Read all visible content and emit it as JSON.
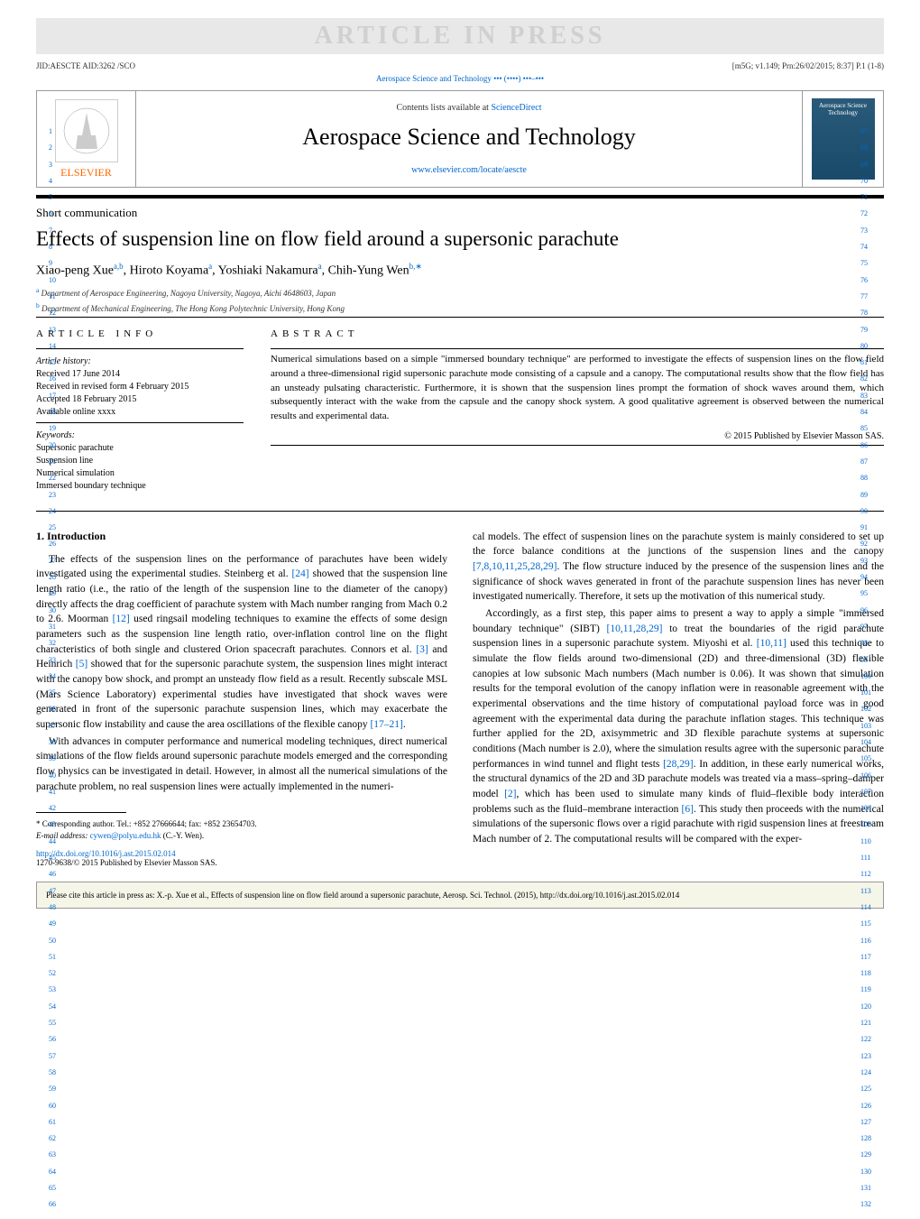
{
  "watermark": "ARTICLE IN PRESS",
  "topMeta": {
    "left": "JID:AESCTE   AID:3262 /SCO",
    "right": "[m5G; v1.149; Prn:26/02/2015; 8:37] P.1 (1-8)"
  },
  "journalLinkTop": "Aerospace Science and Technology ••• (••••) •••–•••",
  "header": {
    "contentsText": "Contents lists available at ",
    "contentsLink": "ScienceDirect",
    "journalTitle": "Aerospace Science and Technology",
    "journalUrl": "www.elsevier.com/locate/aescte",
    "elsevierText": "ELSEVIER",
    "coverLabel": "Aerospace Science Technology"
  },
  "articleType": "Short communication",
  "paperTitle": "Effects of suspension line on flow field around a supersonic parachute",
  "authors": "Xiao-peng Xue",
  "authorsSup1": "a,b",
  "authors2": ", Hiroto Koyama",
  "authorsSup2": "a",
  "authors3": ", Yoshiaki Nakamura",
  "authorsSup3": "a",
  "authors4": ", Chih-Yung Wen",
  "authorsSup4": "b,∗",
  "affiliations": {
    "a": "Department of Aerospace Engineering, Nagoya University, Nagoya, Aichi 4648603, Japan",
    "b": "Department of Mechanical Engineering, The Hong Kong Polytechnic University, Hong Kong"
  },
  "articleInfo": {
    "heading": "ARTICLE INFO",
    "historyLabel": "Article history:",
    "received": "Received 17 June 2014",
    "revised": "Received in revised form 4 February 2015",
    "accepted": "Accepted 18 February 2015",
    "online": "Available online xxxx",
    "keywordsLabel": "Keywords:",
    "kw1": "Supersonic parachute",
    "kw2": "Suspension line",
    "kw3": "Numerical simulation",
    "kw4": "Immersed boundary technique"
  },
  "abstract": {
    "heading": "ABSTRACT",
    "text": "Numerical simulations based on a simple \"immersed boundary technique\" are performed to investigate the effects of suspension lines on the flow field around a three-dimensional rigid supersonic parachute mode consisting of a capsule and a canopy. The computational results show that the flow field has an unsteady pulsating characteristic. Furthermore, it is shown that the suspension lines prompt the formation of shock waves around them, which subsequently interact with the wake from the capsule and the canopy shock system. A good qualitative agreement is observed between the numerical results and experimental data.",
    "copyright": "© 2015 Published by Elsevier Masson SAS."
  },
  "section1": {
    "heading": "1. Introduction",
    "p1": "The effects of the suspension lines on the performance of parachutes have been widely investigated using the experimental studies. Steinberg et al. [24] showed that the suspension line length ratio (i.e., the ratio of the length of the suspension line to the diameter of the canopy) directly affects the drag coefficient of parachute system with Mach number ranging from Mach 0.2 to 2.6. Moorman [12] used ringsail modeling techniques to examine the effects of some design parameters such as the suspension line length ratio, over-inflation control line on the flight characteristics of both single and clustered Orion spacecraft parachutes. Connors et al. [3] and Heinrich [5] showed that for the supersonic parachute system, the suspension lines might interact with the canopy bow shock, and prompt an unsteady flow field as a result. Recently subscale MSL (Mars Science Laboratory) experimental studies have investigated that shock waves were generated in front of the supersonic parachute suspension lines, which may exacerbate the supersonic flow instability and cause the area oscillations of the flexible canopy [17–21].",
    "p2": "With advances in computer performance and numerical modeling techniques, direct numerical simulations of the flow fields around supersonic parachute models emerged and the corresponding flow physics can be investigated in detail. However, in almost all the numerical simulations of the parachute problem, no real suspension lines were actually implemented in the numeri-",
    "p3": "cal models. The effect of suspension lines on the parachute system is mainly considered to set up the force balance conditions at the junctions of the suspension lines and the canopy [7,8,10,11,25,28,29]. The flow structure induced by the presence of the suspension lines and the significance of shock waves generated in front of the parachute suspension lines has never been investigated numerically. Therefore, it sets up the motivation of this numerical study.",
    "p4": "Accordingly, as a first step, this paper aims to present a way to apply a simple \"immersed boundary technique\" (SIBT) [10,11,28,29] to treat the boundaries of the rigid parachute suspension lines in a supersonic parachute system. Miyoshi et al. [10,11] used this technique to simulate the flow fields around two-dimensional (2D) and three-dimensional (3D) flexible canopies at low subsonic Mach numbers (Mach number is 0.06). It was shown that simulation results for the temporal evolution of the canopy inflation were in reasonable agreement with the experimental observations and the time history of computational payload force was in good agreement with the experimental data during the parachute inflation stages. This technique was further applied for the 2D, axisymmetric and 3D flexible parachute systems at supersonic conditions (Mach number is 2.0), where the simulation results agree with the supersonic parachute performances in wind tunnel and flight tests [28,29]. In addition, in these early numerical works, the structural dynamics of the 2D and 3D parachute models was treated via a mass–spring–damper model [2], which has been used to simulate many kinds of fluid–flexible body interaction problems such as the fluid–membrane interaction [6]. This study then proceeds with the numerical simulations of the supersonic flows over a rigid parachute with rigid suspension lines at freestream Mach number of 2. The computational results will be compared with the exper-"
  },
  "footnote": {
    "corresponding": "Corresponding author. Tel.: +852 27666644; fax: +852 23654703.",
    "emailLabel": "E-mail address:",
    "email": "cywen@polyu.edu.hk",
    "emailName": "(C.-Y. Wen)."
  },
  "doi": "http://dx.doi.org/10.1016/j.ast.2015.02.014",
  "issn": "1270-9638/© 2015 Published by Elsevier Masson SAS.",
  "citationBox": "Please cite this article in press as: X.-p. Xue et al., Effects of suspension line on flow field around a supersonic parachute, Aerosp. Sci. Technol. (2015), http://dx.doi.org/10.1016/j.ast.2015.02.014",
  "lineNumbers": {
    "leftStart": 1,
    "leftEnd": 66,
    "rightStart": 67,
    "rightEnd": 132
  },
  "citeColors": {
    "link": "#0066cc"
  }
}
